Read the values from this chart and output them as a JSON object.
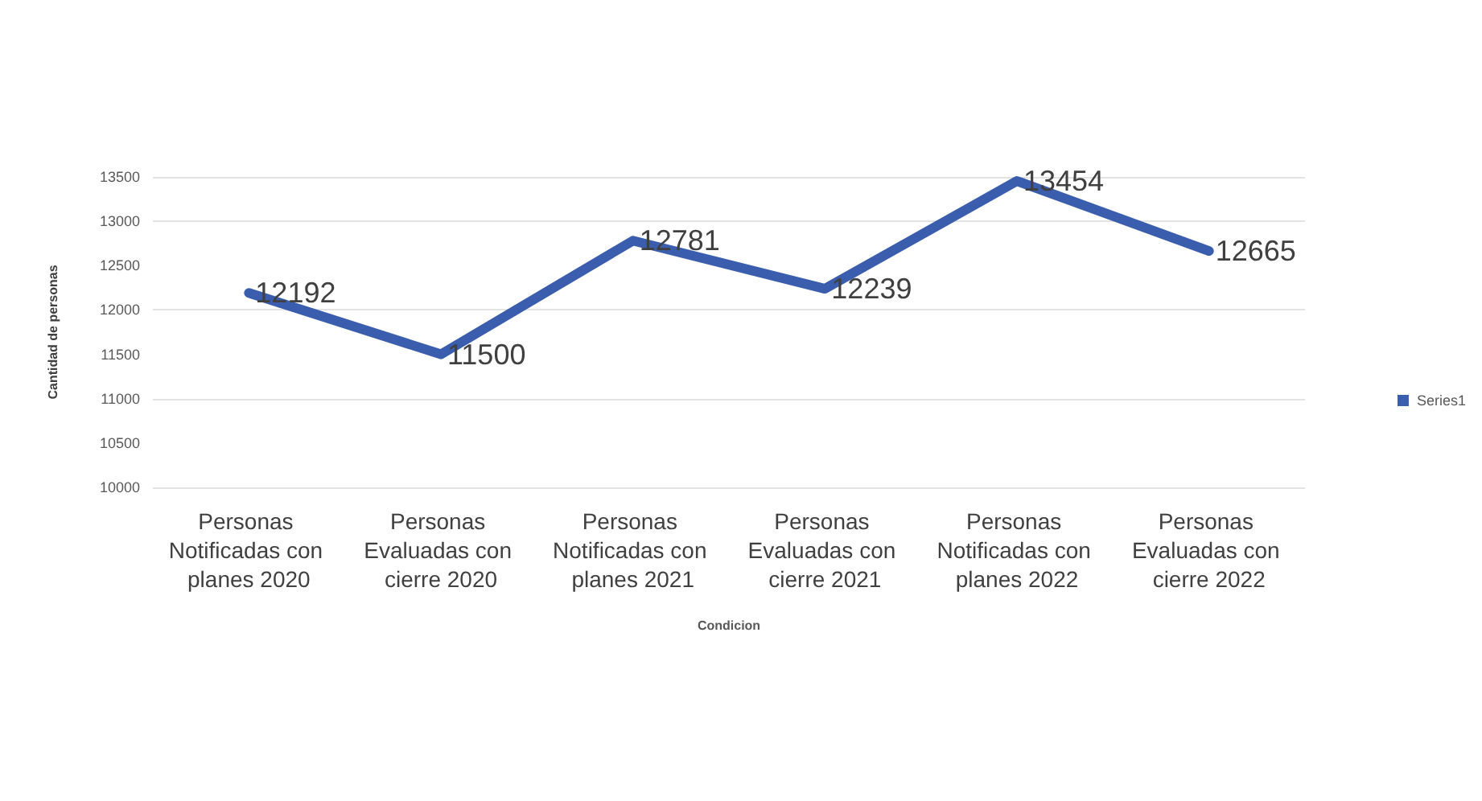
{
  "chart_data": {
    "type": "line",
    "xlabel": "Condicion",
    "ylabel": "Cantidad de personas",
    "categories": [
      "Personas Notificadas con planes 2020",
      "Personas Evaluadas con cierre 2020",
      "Personas Notificadas con planes 2021",
      "Personas Evaluadas con cierre 2021",
      "Personas Notificadas con planes 2022",
      "Personas Evaluadas con cierre 2022"
    ],
    "series": [
      {
        "name": "Series1",
        "color": "#3a5dae",
        "values": [
          12192,
          11500,
          12781,
          12239,
          13454,
          12665
        ]
      }
    ],
    "ylim": [
      10000,
      13500
    ],
    "yticks": [
      10000,
      10500,
      11000,
      11500,
      12000,
      12500,
      13000,
      13500
    ],
    "grid": "y",
    "legend": "right",
    "marker": "none",
    "line_style": "solid",
    "data_labels": true
  }
}
